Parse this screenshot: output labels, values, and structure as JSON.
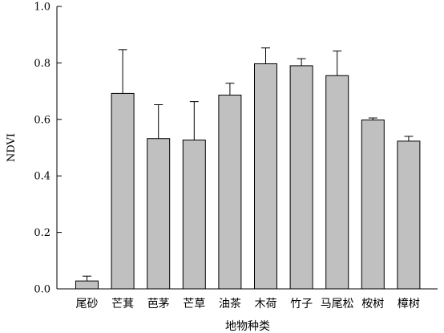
{
  "chart_data": {
    "type": "bar",
    "xlabel": "地物种类",
    "ylabel": "NDVI",
    "ylim": [
      0,
      1.0
    ],
    "yticks": [
      "0.0",
      "0.2",
      "0.4",
      "0.6",
      "0.8",
      "1.0"
    ],
    "ytick_values": [
      0,
      0.2,
      0.4,
      0.6,
      0.8,
      1.0
    ],
    "grid": false,
    "legend": "none",
    "bar_color": "#c0c0c0",
    "edge_color": "#000000",
    "categories": [
      "尾砂",
      "芒萁",
      "芭茅",
      "芒草",
      "油茶",
      "木荷",
      "竹子",
      "马尾松",
      "桉树",
      "樟树"
    ],
    "values": [
      0.028,
      0.692,
      0.532,
      0.527,
      0.686,
      0.797,
      0.79,
      0.755,
      0.598,
      0.523
    ],
    "error_upper": [
      0.045,
      0.847,
      0.652,
      0.663,
      0.728,
      0.853,
      0.815,
      0.842,
      0.605,
      0.54
    ]
  }
}
